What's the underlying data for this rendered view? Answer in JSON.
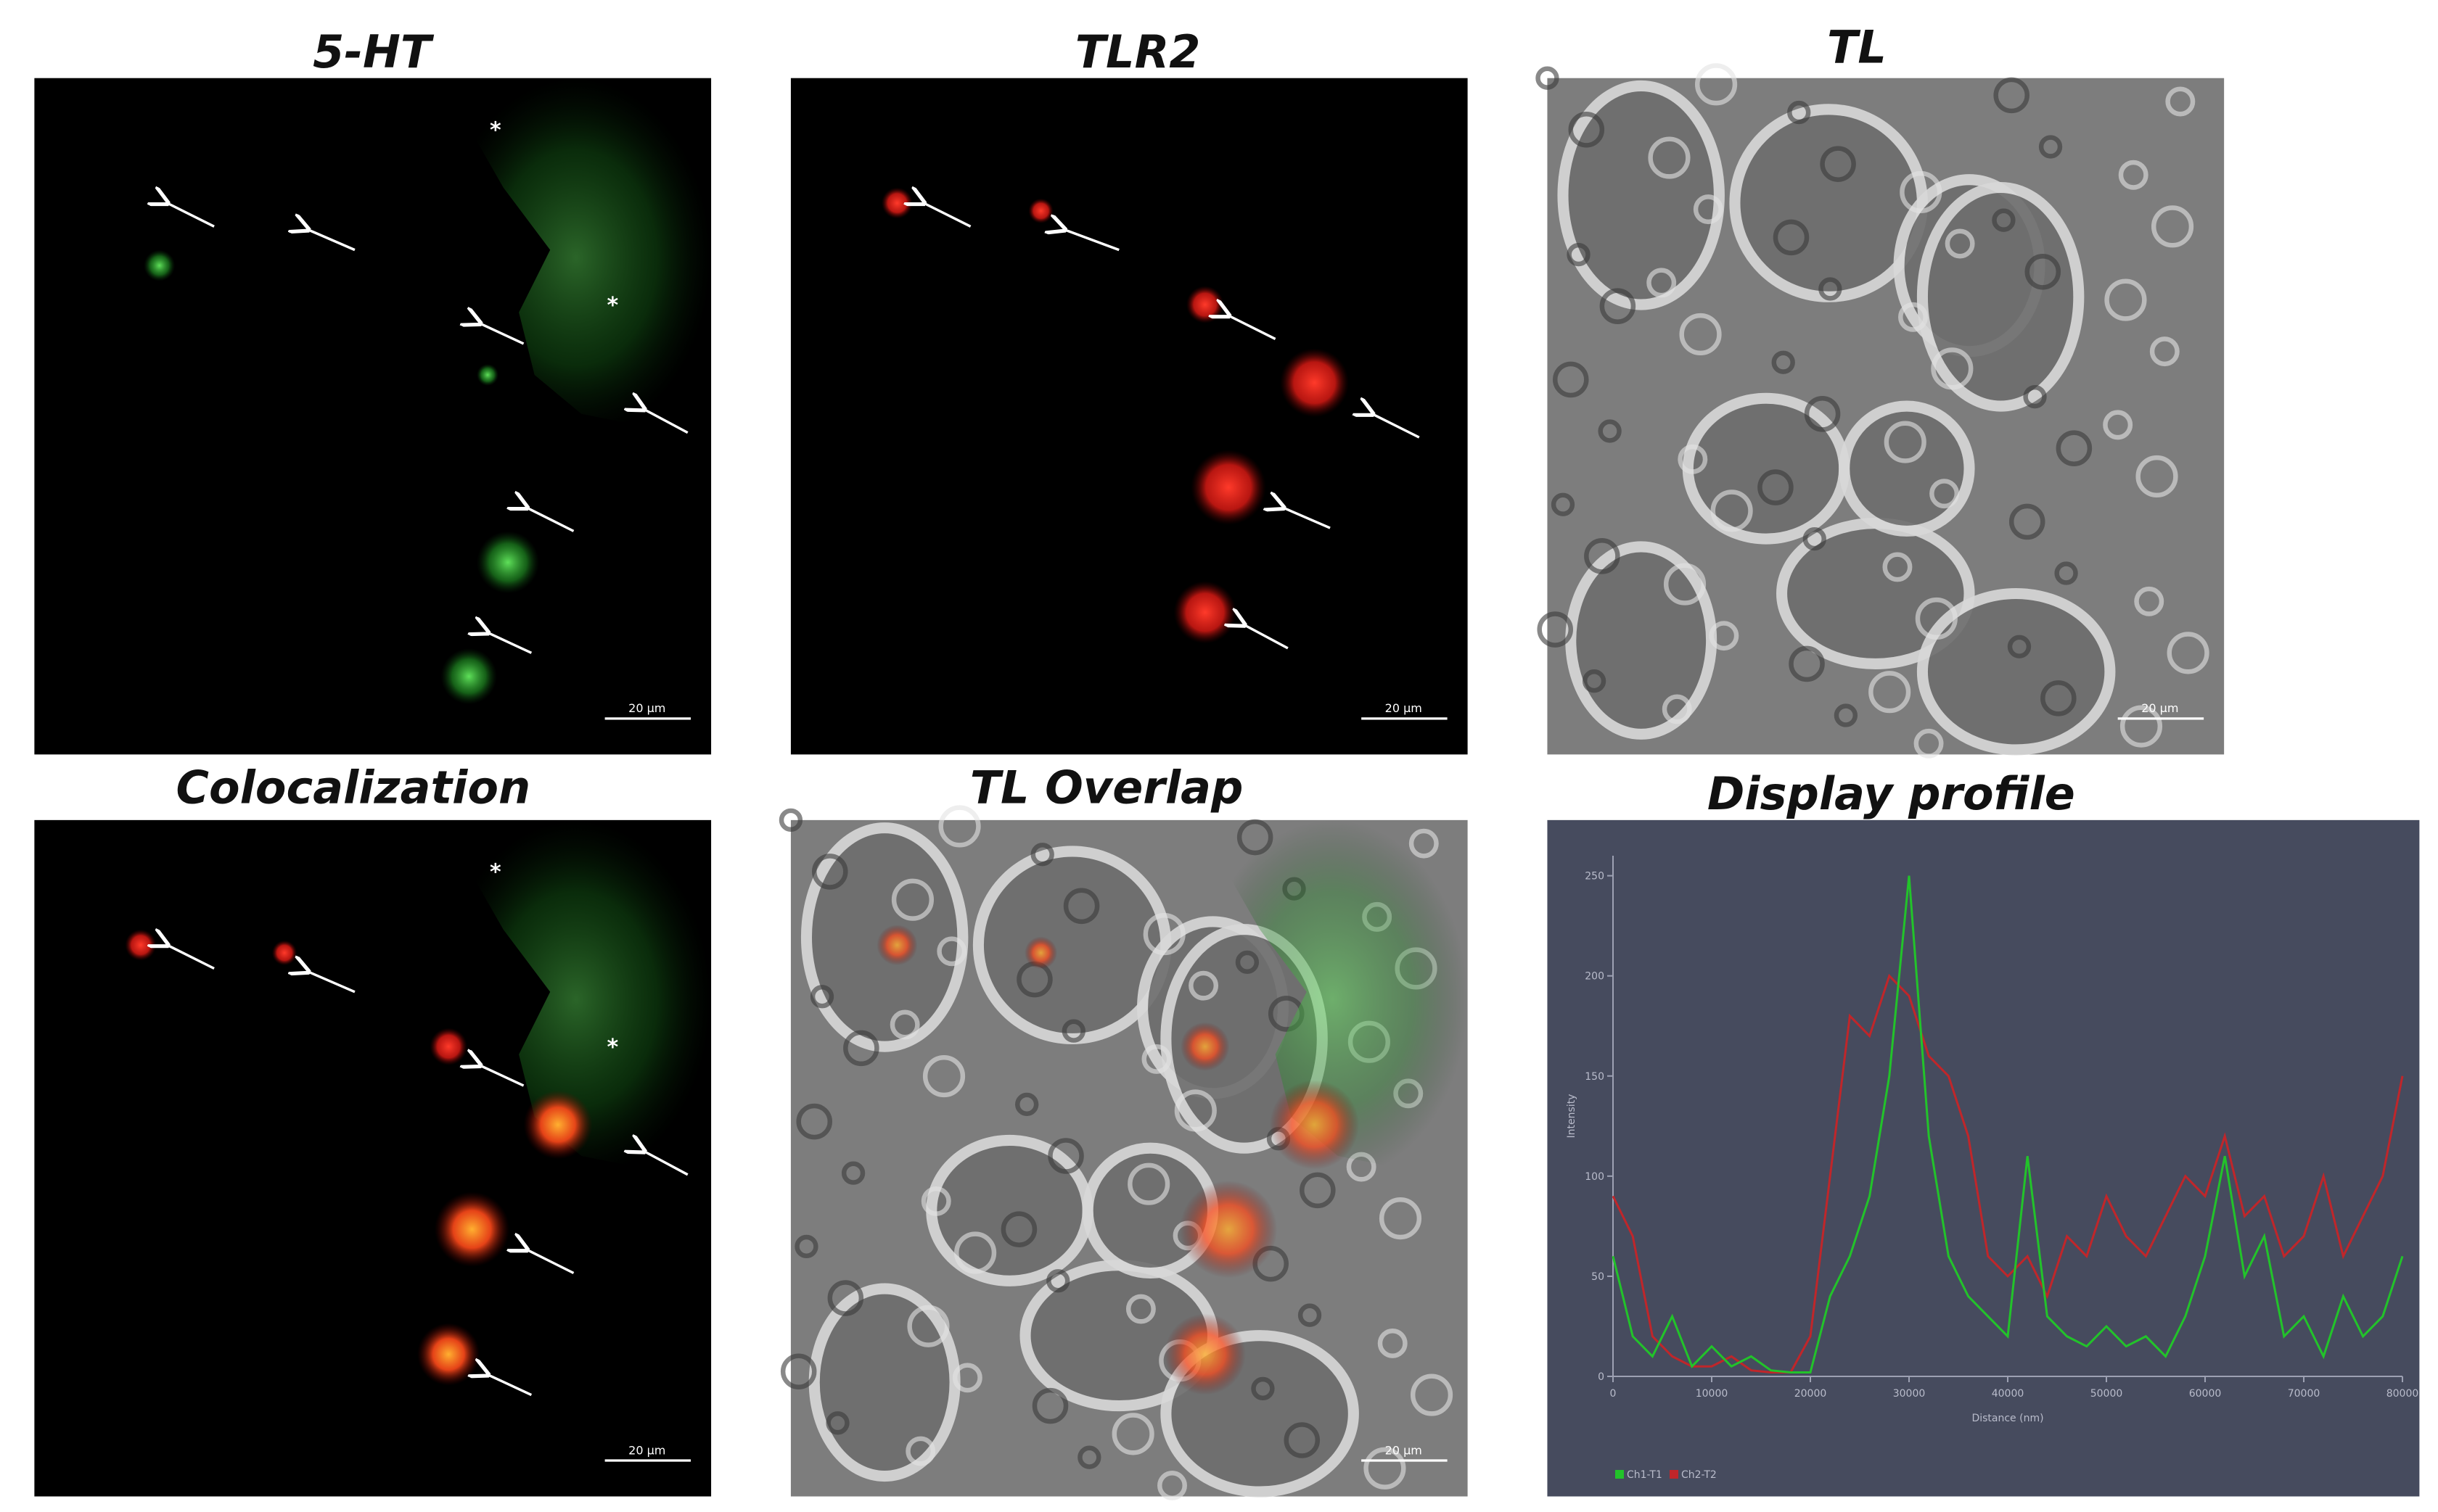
{
  "panels": [
    {
      "title": "5-HT",
      "scale_bar": "20 µm",
      "asterisks": [
        "*",
        "*"
      ]
    },
    {
      "title": "TLR2",
      "scale_bar": "20 µm"
    },
    {
      "title": "TL",
      "scale_bar": "20 µm"
    },
    {
      "title": "Colocalization",
      "scale_bar": "20 µm",
      "asterisks": [
        "*",
        "*"
      ]
    },
    {
      "title": "TL Overlap",
      "scale_bar": "20 µm"
    }
  ],
  "chart_data": {
    "type": "line",
    "title": "Display profile",
    "x_label": "Distance (nm)",
    "y_label": "Intensity",
    "x": [
      0,
      2000,
      4000,
      6000,
      8000,
      10000,
      12000,
      14000,
      16000,
      18000,
      20000,
      22000,
      24000,
      26000,
      28000,
      30000,
      32000,
      34000,
      36000,
      38000,
      40000,
      42000,
      44000,
      46000,
      48000,
      50000,
      52000,
      54000,
      56000,
      58000,
      60000,
      62000,
      64000,
      66000,
      68000,
      70000,
      72000,
      74000,
      76000,
      78000,
      80000
    ],
    "series": [
      {
        "name": "Ch2-T2",
        "color": "#c0262a",
        "values": [
          90,
          70,
          20,
          10,
          5,
          5,
          10,
          3,
          2,
          2,
          20,
          100,
          180,
          170,
          200,
          190,
          160,
          150,
          120,
          60,
          50,
          60,
          40,
          70,
          60,
          90,
          70,
          60,
          80,
          100,
          90,
          120,
          80,
          90,
          60,
          70,
          100,
          60,
          80,
          100,
          150
        ]
      },
      {
        "name": "Ch1-T1",
        "color": "#22c32a",
        "values": [
          60,
          20,
          10,
          30,
          5,
          15,
          5,
          10,
          3,
          2,
          2,
          40,
          60,
          90,
          150,
          250,
          120,
          60,
          40,
          30,
          20,
          110,
          30,
          20,
          15,
          25,
          15,
          20,
          10,
          30,
          60,
          110,
          50,
          70,
          20,
          30,
          10,
          40,
          20,
          30,
          60
        ]
      }
    ],
    "xlim": [
      0,
      80000
    ],
    "ylim": [
      0,
      260
    ],
    "xticks": [
      0,
      10000,
      20000,
      30000,
      40000,
      50000,
      60000,
      70000,
      80000
    ],
    "yticks": [
      0,
      50,
      100,
      150,
      200,
      250
    ]
  }
}
